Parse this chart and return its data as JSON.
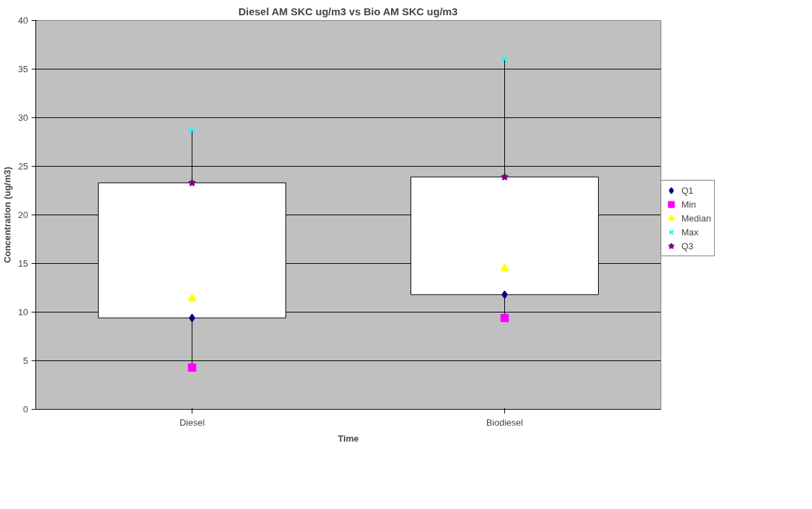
{
  "chart_data": {
    "type": "scatter",
    "title": "Diesel AM SKC ug/m3 vs Bio AM SKC ug/m3",
    "xlabel": "Time",
    "ylabel": "Concentration (ug/m3)",
    "categories": [
      "Diesel",
      "Biodiesel"
    ],
    "series": [
      {
        "type": "box",
        "color": "#ffffff",
        "boxes": [
          {
            "low": 4.3,
            "q1": 9.4,
            "q3": 23.3,
            "high": 28.7
          },
          {
            "low": 9.4,
            "q1": 11.8,
            "q3": 23.9,
            "high": 36.0
          }
        ]
      },
      {
        "name": "Q1",
        "color": "#000080",
        "marker": "diamond",
        "values": [
          9.4,
          11.8
        ]
      },
      {
        "name": "Min",
        "color": "#ff00ff",
        "marker": "square",
        "values": [
          4.3,
          9.4
        ]
      },
      {
        "name": "Median",
        "color": "#ffff00",
        "marker": "triangle",
        "values": [
          11.4,
          14.5
        ]
      },
      {
        "name": "Max",
        "color": "#00ffff",
        "marker": "cross",
        "values": [
          28.7,
          36.0
        ]
      },
      {
        "name": "Q3",
        "color": "#800080",
        "marker": "star",
        "values": [
          23.3,
          23.9
        ]
      }
    ],
    "ylim": [
      0,
      40
    ],
    "yticks": [
      0,
      5,
      10,
      15,
      20,
      25,
      30,
      35,
      40
    ],
    "grid": "y",
    "legend": "right"
  }
}
